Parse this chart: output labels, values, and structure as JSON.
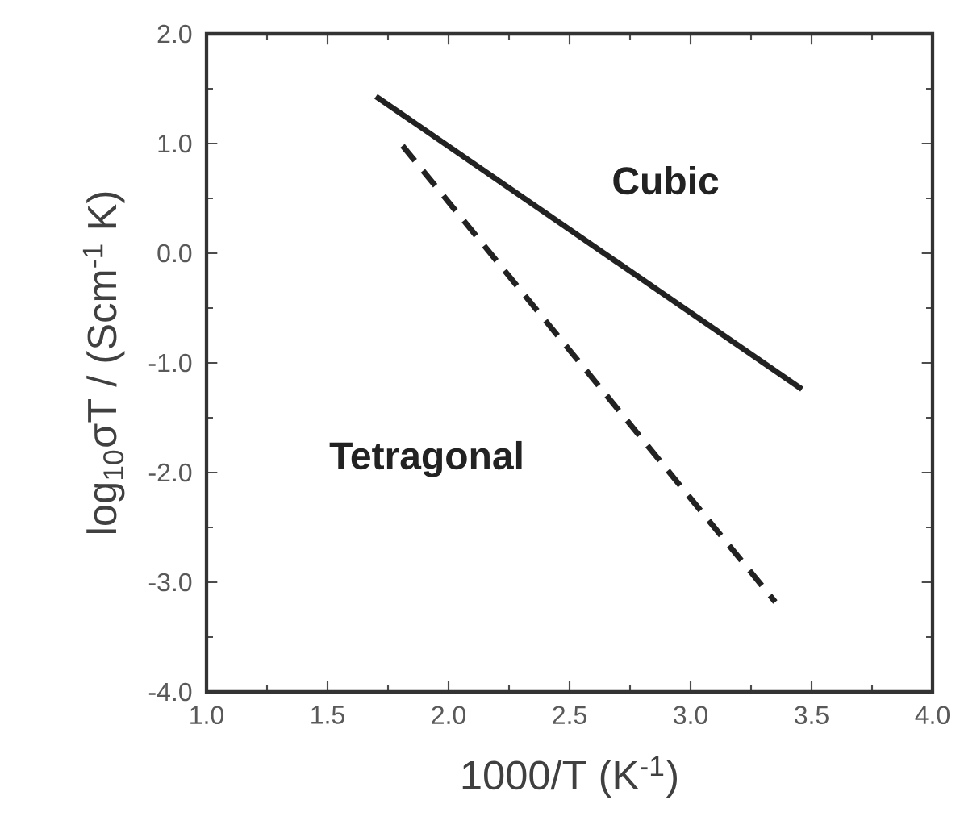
{
  "chart_data": {
    "type": "line",
    "xlabel": "1000/T (K$^{-1}$)",
    "ylabel": "log$_{10}$σT / (Scm$^{-1}$ K)",
    "xlim": [
      1.0,
      4.0
    ],
    "ylim": [
      -4.0,
      2.0
    ],
    "xticks": [
      {
        "value": 1.0,
        "label": "1.0"
      },
      {
        "value": 1.5,
        "label": "1.5"
      },
      {
        "value": 2.0,
        "label": "2.0"
      },
      {
        "value": 2.5,
        "label": "2.5"
      },
      {
        "value": 3.0,
        "label": "3.0"
      },
      {
        "value": 3.5,
        "label": "3.5"
      },
      {
        "value": 4.0,
        "label": "4.0"
      }
    ],
    "yticks": [
      {
        "value": -4.0,
        "label": "-4.0"
      },
      {
        "value": -3.0,
        "label": "-3.0"
      },
      {
        "value": -2.0,
        "label": "-2.0"
      },
      {
        "value": -1.0,
        "label": "-1.0"
      },
      {
        "value": 0.0,
        "label": "0.0"
      },
      {
        "value": 1.0,
        "label": "1.0"
      },
      {
        "value": 2.0,
        "label": "2.0"
      }
    ],
    "grid": false,
    "legend": false,
    "marker": "none",
    "series": [
      {
        "name": "Cubic",
        "color": "#222222",
        "line_style": "solid",
        "x": [
          1.7,
          3.46
        ],
        "values": [
          1.43,
          -1.24
        ]
      },
      {
        "name": "Tetragonal",
        "color": "#222222",
        "line_style": "dashed",
        "x": [
          1.81,
          3.35
        ],
        "values": [
          0.98,
          -3.18
        ]
      }
    ]
  }
}
